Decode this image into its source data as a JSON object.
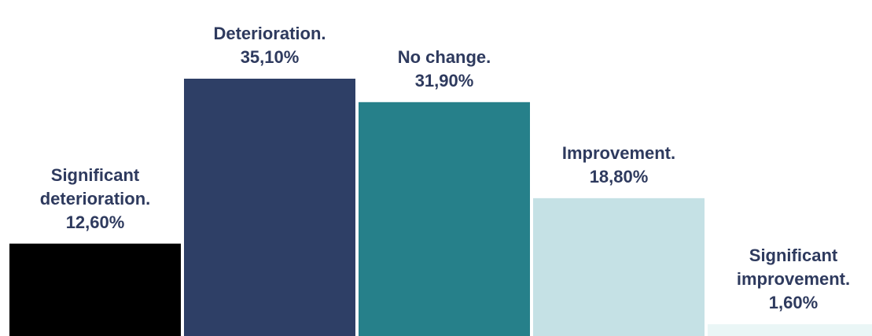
{
  "chart_data": {
    "type": "bar",
    "categories": [
      "Significant deterioration.",
      "Deterioration.",
      "No change.",
      "Improvement.",
      "Significant improvement."
    ],
    "values": [
      12.6,
      35.1,
      31.9,
      18.8,
      1.6
    ],
    "value_labels": [
      "12,60%",
      "35,10%",
      "31,90%",
      "18,80%",
      "1,60%"
    ],
    "colors": [
      "#000000",
      "#2e3f66",
      "#26808a",
      "#c5e1e5",
      "#eaf6f6"
    ]
  }
}
